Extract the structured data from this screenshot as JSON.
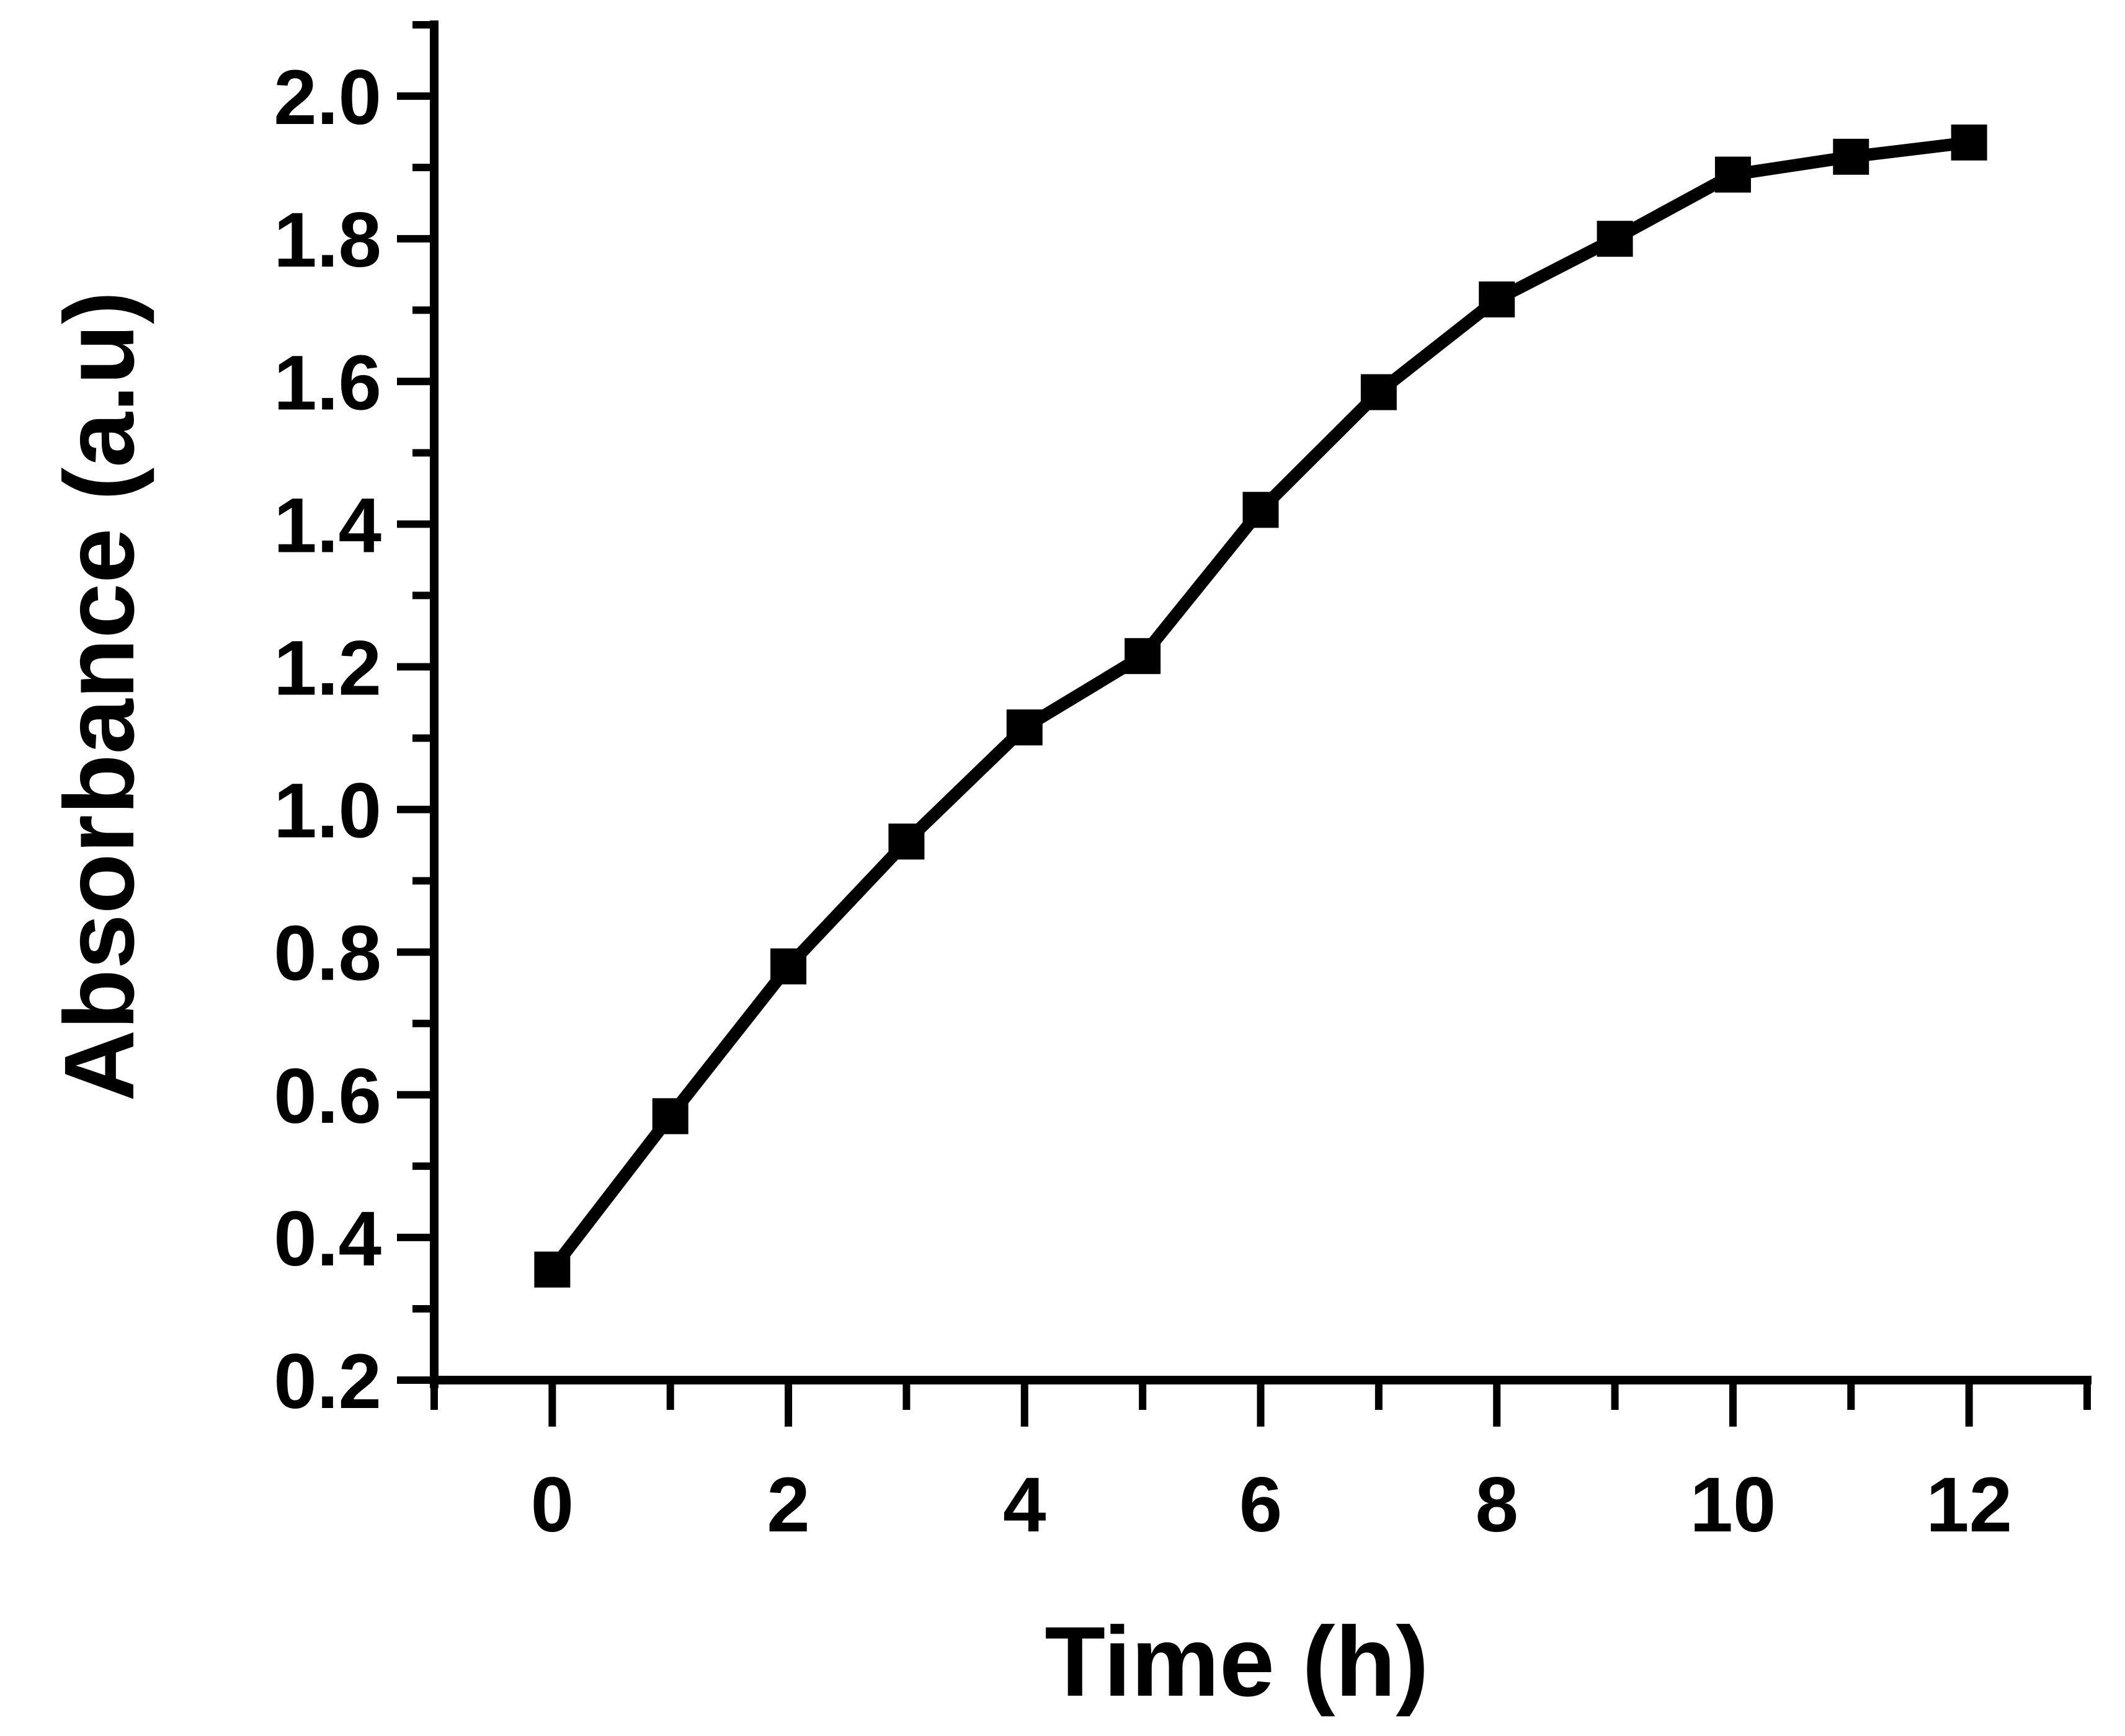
{
  "chart_data": {
    "type": "line",
    "title": "",
    "xlabel": "Time (h)",
    "ylabel": "Absorbance (a.u)",
    "xlim": [
      -1,
      13
    ],
    "ylim": [
      0.2,
      2.1
    ],
    "x_ticks": [
      0,
      2,
      4,
      6,
      8,
      10,
      12
    ],
    "x_tick_labels": [
      "0",
      "2",
      "4",
      "6",
      "8",
      "10",
      "12"
    ],
    "y_ticks": [
      0.2,
      0.4,
      0.6,
      0.8,
      1.0,
      1.2,
      1.4,
      1.6,
      1.8,
      2.0
    ],
    "y_tick_labels": [
      "0.2",
      "0.4",
      "0.6",
      "0.8",
      "1.0",
      "1.2",
      "1.4",
      "1.6",
      "1.8",
      "2.0"
    ],
    "grid": false,
    "marker": "square",
    "line_color": "#000000",
    "series": [
      {
        "x": [
          0,
          1,
          2,
          3,
          4,
          5,
          6,
          7,
          8,
          9,
          10,
          11,
          12
        ],
        "values": [
          0.355,
          0.57,
          0.78,
          0.955,
          1.115,
          1.215,
          1.42,
          1.585,
          1.715,
          1.8,
          1.89,
          1.915,
          1.935
        ]
      }
    ]
  }
}
